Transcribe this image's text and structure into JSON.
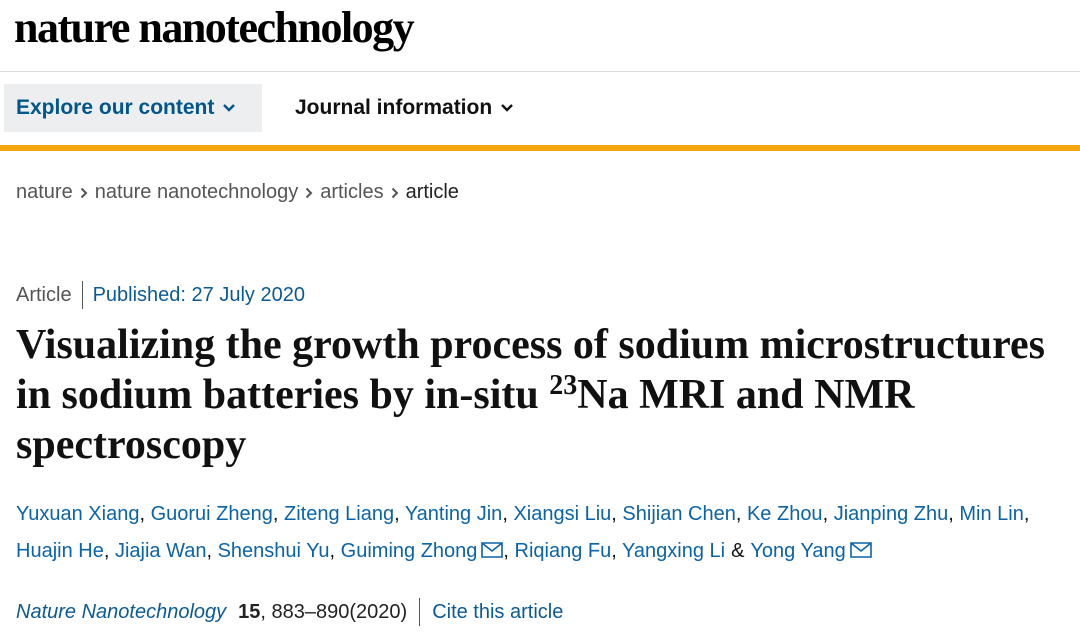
{
  "header": {
    "logo": "nature nanotechnology"
  },
  "nav": {
    "items": [
      "Explore our content",
      "Journal information"
    ]
  },
  "breadcrumbs": [
    "nature",
    "nature nanotechnology",
    "articles",
    "article"
  ],
  "article": {
    "type": "Article",
    "published": "Published: 27 July 2020",
    "title": {
      "before": "Visualizing the growth process of sodium microstructures in sodium batteries by in-situ ",
      "superscript": "23",
      "after": "Na MRI and NMR spectroscopy"
    },
    "authors": [
      {
        "name": "Yuxuan Xiang",
        "after": ","
      },
      {
        "name": "Guorui Zheng",
        "after": ","
      },
      {
        "name": "Ziteng Liang",
        "after": ","
      },
      {
        "name": "Yanting Jin",
        "after": ","
      },
      {
        "name": "Xiangsi Liu",
        "after": ","
      },
      {
        "name": "Shijian Chen",
        "after": ","
      },
      {
        "name": "Ke Zhou",
        "after": ","
      },
      {
        "name": "Jianping Zhu",
        "after": ","
      },
      {
        "name": "Min Lin",
        "after": ","
      },
      {
        "name": "Huajin He",
        "after": ","
      },
      {
        "name": "Jiajia Wan",
        "after": ","
      },
      {
        "name": "Shenshui Yu",
        "after": ","
      },
      {
        "name": "Guiming Zhong",
        "corresponding": true,
        "after": ","
      },
      {
        "name": "Riqiang Fu",
        "after": ","
      },
      {
        "name": "Yangxing Li",
        "after": "&"
      },
      {
        "name": "Yong Yang",
        "corresponding": true
      }
    ],
    "citation": {
      "journal": "Nature Nanotechnology",
      "volume": "15",
      "details": ", 883–890(2020)",
      "cite": "Cite this article"
    }
  }
}
